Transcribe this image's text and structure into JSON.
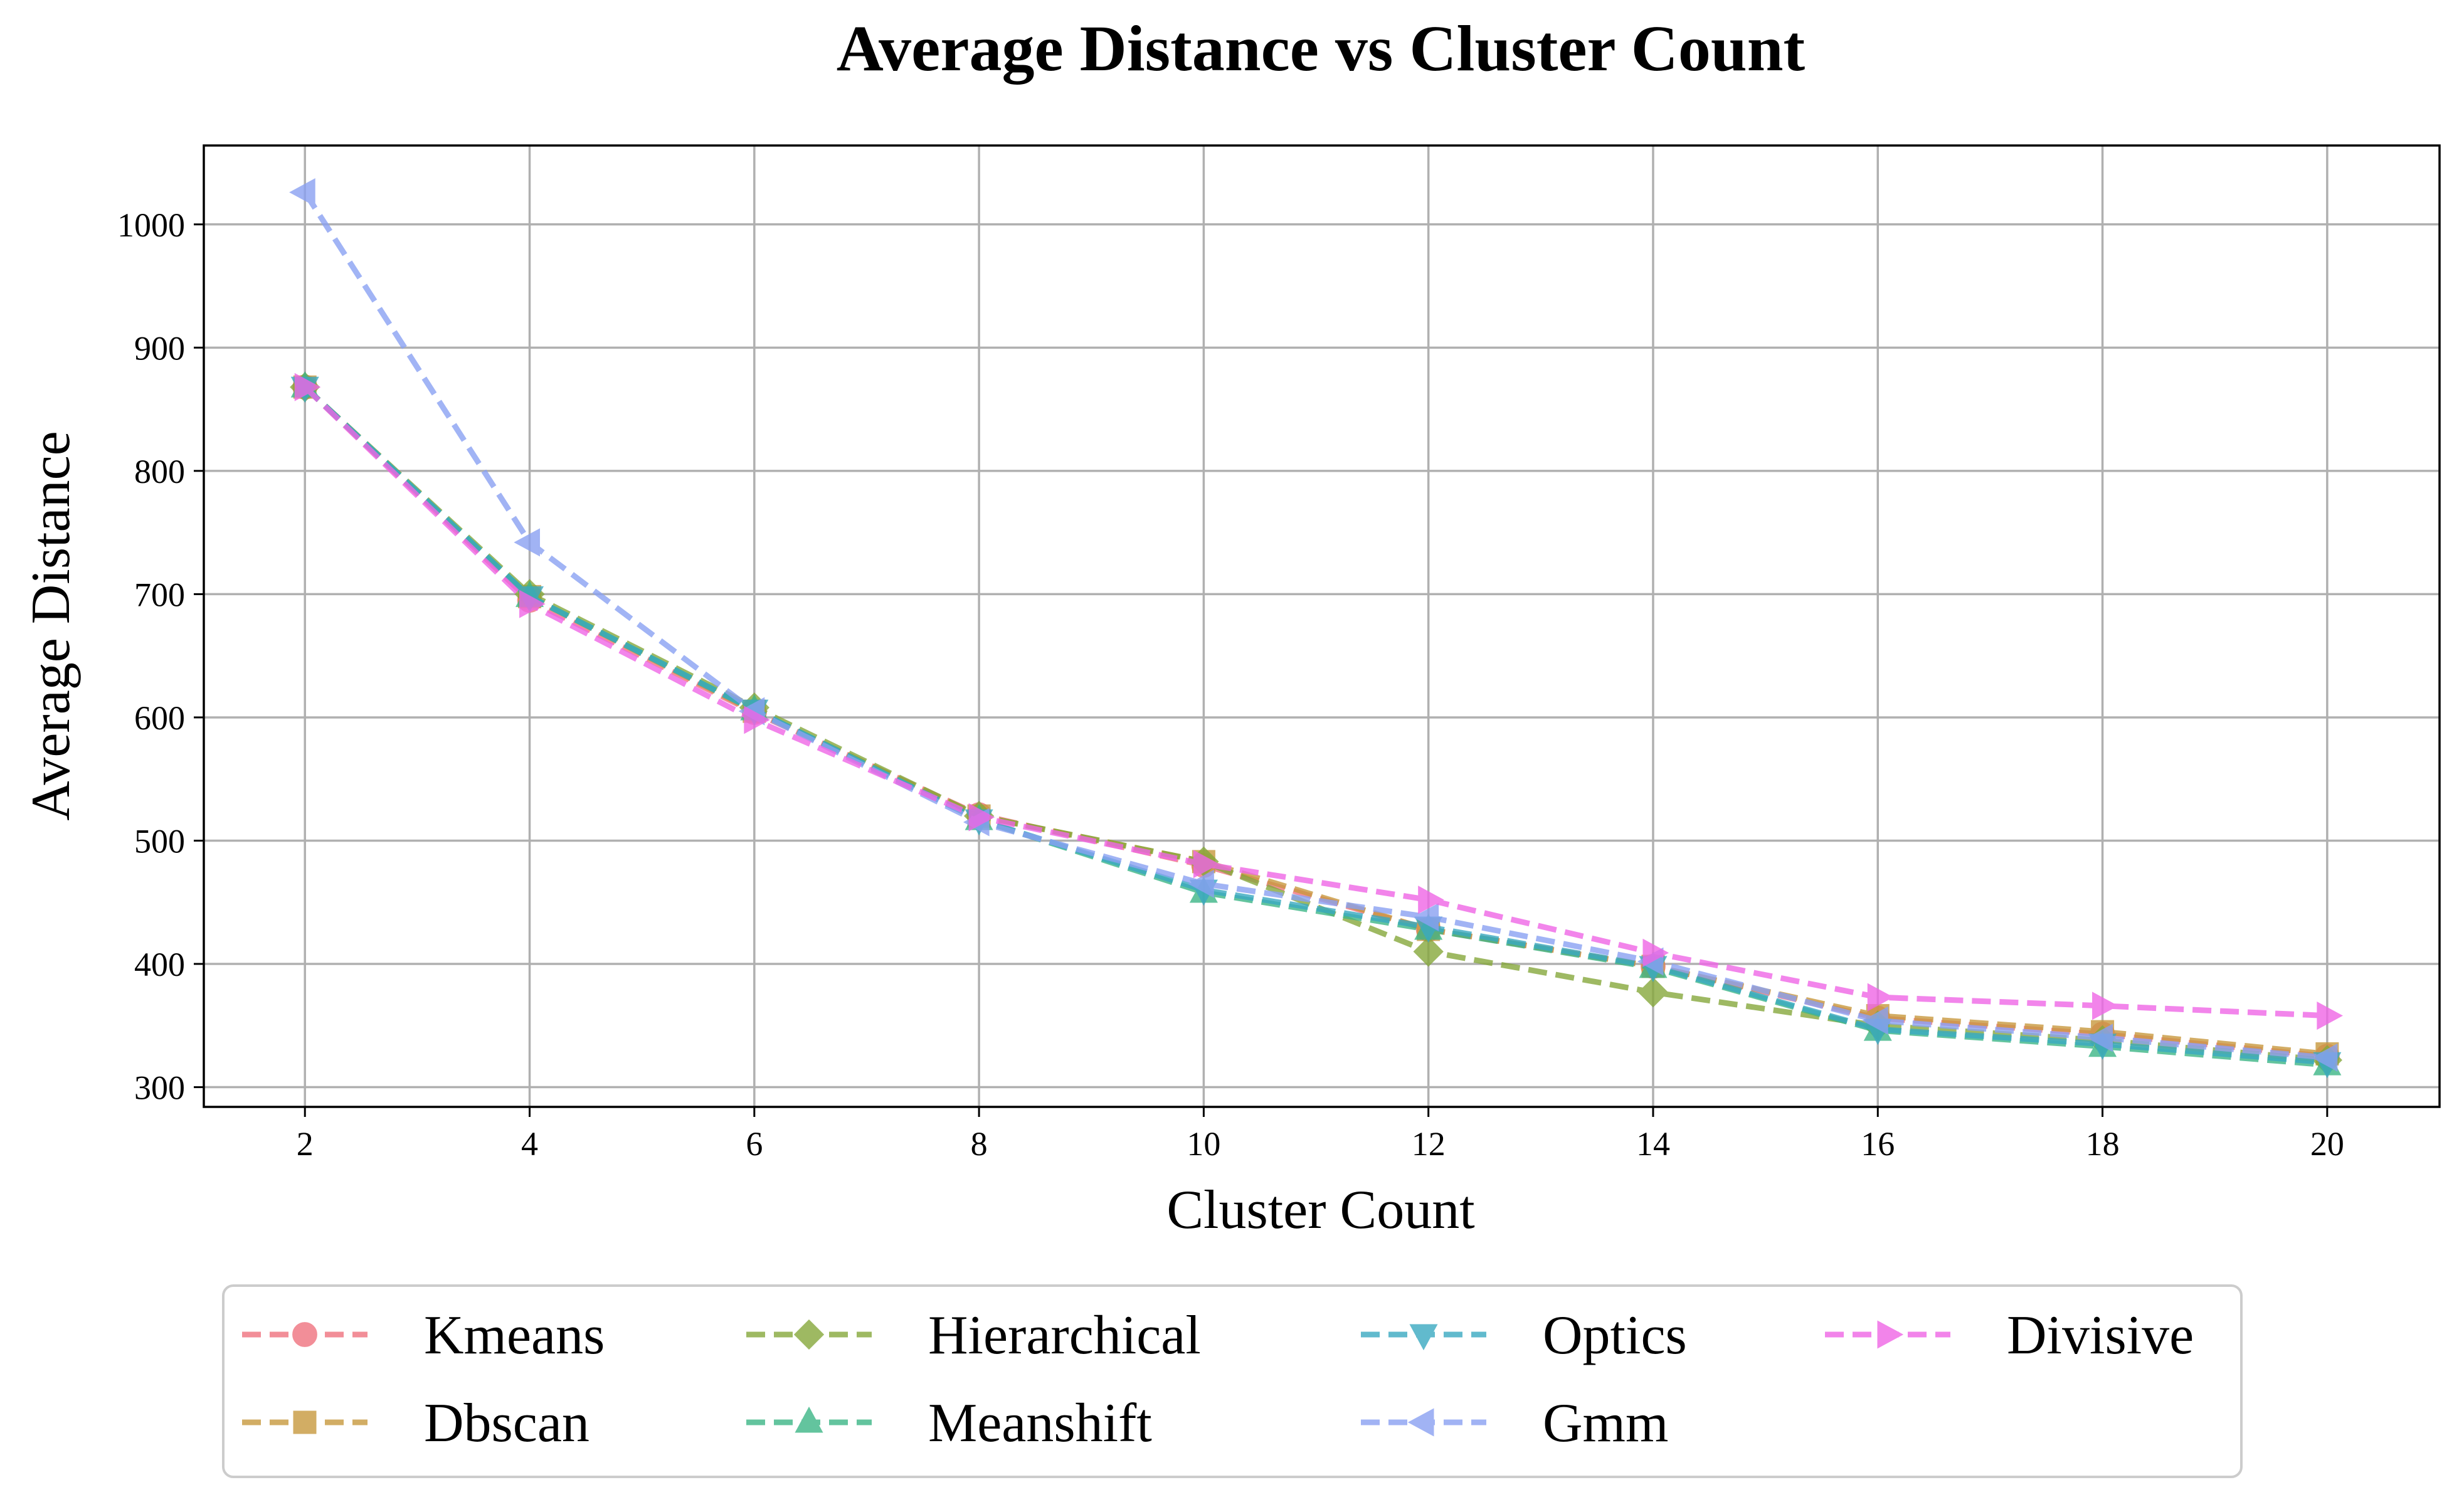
{
  "chart_data": {
    "type": "line",
    "title": "Average Distance vs Cluster Count",
    "xlabel": "Cluster Count",
    "ylabel": "Average Distance",
    "x": [
      2,
      4,
      6,
      8,
      10,
      12,
      14,
      16,
      18,
      20
    ],
    "xlim": [
      1.1,
      21.0
    ],
    "ylim": [
      284,
      1064
    ],
    "xticks": [
      2,
      4,
      6,
      8,
      10,
      12,
      14,
      16,
      18,
      20
    ],
    "yticks": [
      300,
      400,
      500,
      600,
      700,
      800,
      900,
      1000
    ],
    "grid": true,
    "legend_position": "below plot, 4 columns",
    "series": [
      {
        "name": "Kmeans",
        "color": "#f0727f",
        "marker": "circle",
        "values": [
          868,
          695,
          604,
          521,
          480,
          428,
          398,
          356,
          343,
          325
        ]
      },
      {
        "name": "Dbscan",
        "color": "#c8993e",
        "marker": "square",
        "values": [
          868,
          698,
          605,
          520,
          483,
          428,
          398,
          358,
          345,
          327
        ]
      },
      {
        "name": "Hierarchical",
        "color": "#86a83c",
        "marker": "diamond",
        "values": [
          868,
          700,
          608,
          520,
          483,
          410,
          377,
          350,
          338,
          322
        ]
      },
      {
        "name": "Meanshift",
        "color": "#3db687",
        "marker": "triangle-up",
        "values": [
          868,
          698,
          606,
          517,
          458,
          428,
          397,
          346,
          333,
          318
        ]
      },
      {
        "name": "Optics",
        "color": "#3aa9c1",
        "marker": "triangle-down",
        "values": [
          868,
          698,
          606,
          517,
          460,
          430,
          398,
          347,
          335,
          320
        ]
      },
      {
        "name": "Gmm",
        "color": "#8aa1f2",
        "marker": "triangle-left",
        "values": [
          1026,
          742,
          605,
          515,
          465,
          438,
          402,
          354,
          340,
          324
        ]
      },
      {
        "name": "Divisive",
        "color": "#ef66e6",
        "marker": "triangle-right",
        "values": [
          868,
          692,
          598,
          519,
          481,
          452,
          409,
          373,
          366,
          358
        ]
      }
    ]
  }
}
